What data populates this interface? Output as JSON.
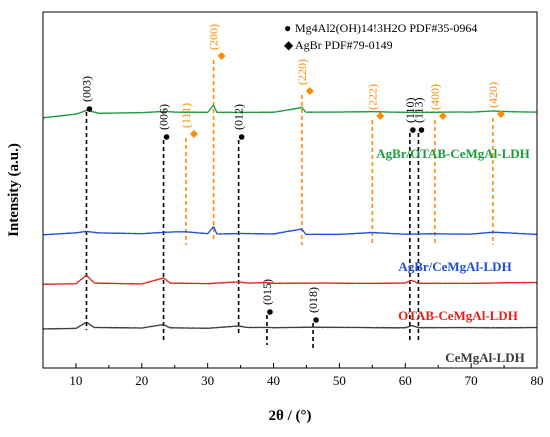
{
  "chart_data": {
    "type": "line",
    "xlabel": "2θ / (°)",
    "ylabel": "Intensity (a.u.)",
    "xlim": [
      5,
      80
    ],
    "xticks": [
      "10",
      "20",
      "30",
      "40",
      "50",
      "60",
      "70",
      "80"
    ],
    "grid": false,
    "legend": [
      {
        "marker": "●",
        "label": "Mg4Al2(OH)14!3H2O PDF#35-0964",
        "color": "#000000"
      },
      {
        "marker": "◆",
        "label": "AgBr PDF#79-0149",
        "color": "#ff8c00"
      }
    ],
    "series": [
      {
        "name": "AgBr/OTAB-CeMgAl-LDH",
        "color": "#1a9b3c",
        "baseline": 0.19,
        "points": [
          [
            5,
            0.21
          ],
          [
            10,
            0.15
          ],
          [
            11.6,
            0.09
          ],
          [
            13.5,
            0.14
          ],
          [
            20,
            0.13
          ],
          [
            23.3,
            0.11
          ],
          [
            25,
            0.12
          ],
          [
            30,
            0.12
          ],
          [
            30.9,
            0.0
          ],
          [
            31.4,
            0.12
          ],
          [
            35,
            0.12
          ],
          [
            40,
            0.12
          ],
          [
            44.3,
            0.04
          ],
          [
            44.9,
            0.12
          ],
          [
            50,
            0.12
          ],
          [
            55,
            0.11
          ],
          [
            60,
            0.12
          ],
          [
            64.5,
            0.12
          ],
          [
            70,
            0.12
          ],
          [
            73.3,
            0.1
          ],
          [
            80,
            0.12
          ]
        ]
      },
      {
        "name": "AgBr/CeMgAl-LDH",
        "color": "#1f4fd6",
        "baseline": 0.28,
        "points": [
          [
            5,
            0.28
          ],
          [
            10,
            0.25
          ],
          [
            11.6,
            0.22
          ],
          [
            13.5,
            0.25
          ],
          [
            20,
            0.26
          ],
          [
            23.3,
            0.24
          ],
          [
            26.7,
            0.23
          ],
          [
            30,
            0.26
          ],
          [
            30.9,
            0.14
          ],
          [
            31.4,
            0.27
          ],
          [
            35,
            0.26
          ],
          [
            40,
            0.27
          ],
          [
            44.3,
            0.18
          ],
          [
            44.9,
            0.27
          ],
          [
            50,
            0.27
          ],
          [
            55,
            0.24
          ],
          [
            60,
            0.27
          ],
          [
            64.5,
            0.26
          ],
          [
            70,
            0.27
          ],
          [
            73.3,
            0.24
          ],
          [
            80,
            0.27
          ]
        ]
      },
      {
        "name": "OTAB-CeMgAl-LDH",
        "color": "#e4231b",
        "baseline": 0.24,
        "points": [
          [
            5,
            0.24
          ],
          [
            10,
            0.23
          ],
          [
            11.6,
            0.09
          ],
          [
            12.8,
            0.22
          ],
          [
            20,
            0.23
          ],
          [
            23.3,
            0.13
          ],
          [
            24.3,
            0.22
          ],
          [
            30,
            0.23
          ],
          [
            34.7,
            0.2
          ],
          [
            36,
            0.22
          ],
          [
            39,
            0.21
          ],
          [
            40,
            0.22
          ],
          [
            46,
            0.22
          ],
          [
            50,
            0.22
          ],
          [
            60,
            0.22
          ],
          [
            61,
            0.17
          ],
          [
            62,
            0.22
          ],
          [
            70,
            0.22
          ],
          [
            80,
            0.21
          ]
        ]
      },
      {
        "name": "CeMgAl-LDH",
        "color": "#3c3c3c",
        "baseline": 0.18,
        "points": [
          [
            5,
            0.18
          ],
          [
            10,
            0.17
          ],
          [
            11.6,
            0.07
          ],
          [
            12.8,
            0.16
          ],
          [
            20,
            0.17
          ],
          [
            23.3,
            0.11
          ],
          [
            24.3,
            0.16
          ],
          [
            30,
            0.17
          ],
          [
            34.7,
            0.13
          ],
          [
            36,
            0.16
          ],
          [
            39,
            0.16
          ],
          [
            40,
            0.16
          ],
          [
            46,
            0.15
          ],
          [
            50,
            0.16
          ],
          [
            60,
            0.16
          ],
          [
            61,
            0.13
          ],
          [
            62,
            0.16
          ],
          [
            70,
            0.16
          ],
          [
            80,
            0.16
          ]
        ]
      }
    ],
    "reference_lines": [
      {
        "x": 11.6,
        "label": "(003)",
        "phase": "ldh"
      },
      {
        "x": 23.3,
        "label": "(006)",
        "phase": "ldh"
      },
      {
        "x": 26.7,
        "label": "(111)",
        "phase": "agbr"
      },
      {
        "x": 30.9,
        "label": "(200)",
        "phase": "agbr"
      },
      {
        "x": 34.7,
        "label": "(012)",
        "phase": "ldh"
      },
      {
        "x": 39.0,
        "label": "(015)",
        "phase": "ldh"
      },
      {
        "x": 44.3,
        "label": "(220)",
        "phase": "agbr"
      },
      {
        "x": 46.0,
        "label": "(018)",
        "phase": "ldh"
      },
      {
        "x": 55.0,
        "label": "(222)",
        "phase": "agbr"
      },
      {
        "x": 60.7,
        "label": "(110)",
        "phase": "ldh"
      },
      {
        "x": 62.0,
        "label": "(113)",
        "phase": "ldh"
      },
      {
        "x": 64.5,
        "label": "(400)",
        "phase": "agbr"
      },
      {
        "x": 73.3,
        "label": "(420)",
        "phase": "agbr"
      }
    ]
  }
}
